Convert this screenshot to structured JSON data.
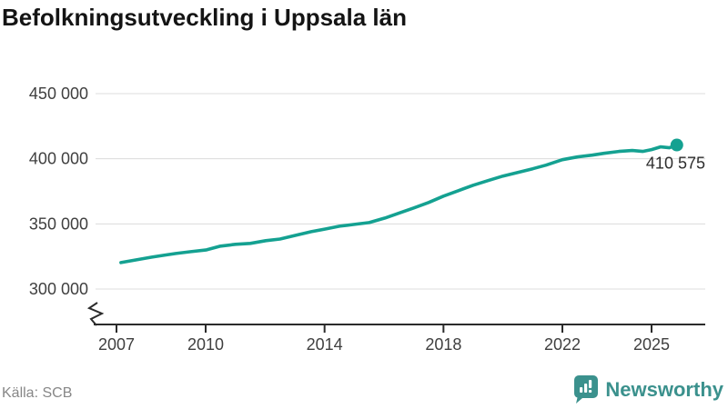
{
  "title": "Befolkningsutveckling i Uppsala län",
  "footer": {
    "source_label": "Källa: SCB",
    "brand_name": "Newsworthy",
    "brand_icon": "bar-chart-speech-bubble-icon",
    "brand_color": "#3b918d"
  },
  "colors": {
    "line": "#14a191",
    "grid": "#dcdcdc",
    "axis": "#2b2b2b",
    "label": "#3f3f3f"
  },
  "chart_data": {
    "type": "line",
    "title": "Befolkningsutveckling i Uppsala län",
    "xlabel": "",
    "ylabel": "",
    "xlim": [
      2006.3,
      2026.8
    ],
    "ylim": [
      300000,
      450000
    ],
    "y_axis_break": true,
    "grid": "horizontal",
    "y_ticks": [
      {
        "value": 300000,
        "label": "300 000"
      },
      {
        "value": 350000,
        "label": "350 000"
      },
      {
        "value": 400000,
        "label": "400 000"
      },
      {
        "value": 450000,
        "label": "450 000"
      }
    ],
    "x_ticks": [
      {
        "value": 2007,
        "label": "2007"
      },
      {
        "value": 2010,
        "label": "2010"
      },
      {
        "value": 2014,
        "label": "2014"
      },
      {
        "value": 2018,
        "label": "2018"
      },
      {
        "value": 2022,
        "label": "2022"
      },
      {
        "value": 2025,
        "label": "2025"
      }
    ],
    "series": [
      {
        "name": "Befolkning Uppsala län",
        "color": "#14a191",
        "end_label": "410 575",
        "end_value": 410575,
        "points": [
          [
            2007.15,
            320300
          ],
          [
            2007.67,
            322400
          ],
          [
            2008.19,
            324500
          ],
          [
            2008.59,
            325900
          ],
          [
            2009.0,
            327300
          ],
          [
            2009.5,
            328700
          ],
          [
            2010.03,
            330100
          ],
          [
            2010.5,
            332900
          ],
          [
            2011.0,
            334300
          ],
          [
            2011.5,
            335000
          ],
          [
            2012.02,
            337100
          ],
          [
            2012.5,
            338400
          ],
          [
            2013.03,
            341200
          ],
          [
            2013.55,
            344000
          ],
          [
            2014.04,
            346100
          ],
          [
            2014.5,
            348200
          ],
          [
            2015.0,
            349600
          ],
          [
            2015.5,
            351000
          ],
          [
            2016.03,
            354500
          ],
          [
            2016.55,
            358700
          ],
          [
            2017.0,
            362200
          ],
          [
            2017.5,
            366400
          ],
          [
            2018.0,
            371300
          ],
          [
            2018.5,
            375500
          ],
          [
            2019.0,
            379700
          ],
          [
            2019.5,
            383200
          ],
          [
            2020.0,
            386700
          ],
          [
            2020.5,
            389500
          ],
          [
            2021.0,
            392300
          ],
          [
            2021.45,
            395100
          ],
          [
            2022.0,
            399300
          ],
          [
            2022.5,
            401400
          ],
          [
            2023.0,
            402800
          ],
          [
            2023.4,
            404200
          ],
          [
            2023.9,
            405600
          ],
          [
            2024.35,
            406300
          ],
          [
            2024.7,
            405600
          ],
          [
            2025.0,
            407000
          ],
          [
            2025.3,
            409100
          ],
          [
            2025.6,
            408400
          ],
          [
            2025.85,
            410575
          ]
        ]
      }
    ]
  }
}
